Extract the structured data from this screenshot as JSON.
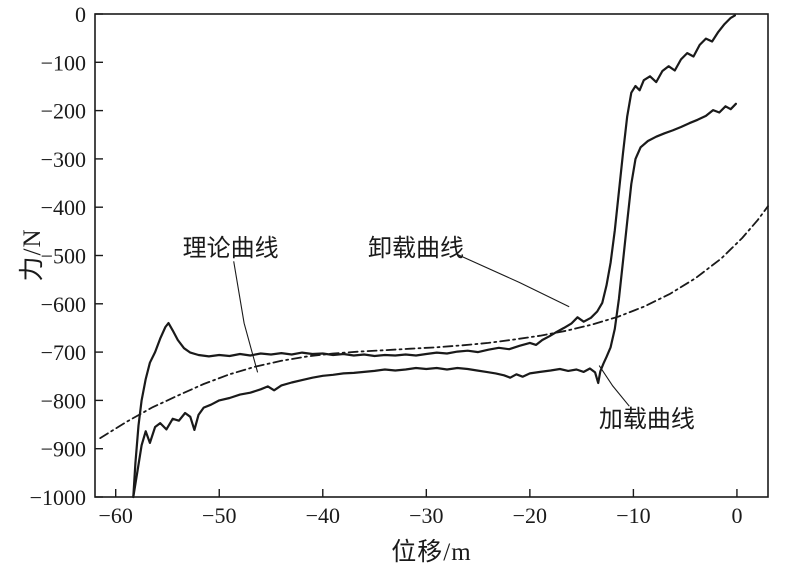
{
  "figure": {
    "background": "#ffffff",
    "ink": "#1a1a1a"
  },
  "chart_data": {
    "type": "line",
    "title": "",
    "xlabel": "位移/m",
    "ylabel": "力/N",
    "xlim": [
      -62,
      3
    ],
    "ylim": [
      -1000,
      0
    ],
    "xticks": [
      -60,
      -50,
      -40,
      -30,
      -20,
      -10,
      0
    ],
    "yticks": [
      0,
      -100,
      -200,
      -300,
      -400,
      -500,
      -600,
      -700,
      -800,
      -900,
      -1000
    ],
    "grid": false,
    "legend": "none",
    "series": [
      {
        "key": "theoretical-curve",
        "name": "理论曲线",
        "style": "dashdot",
        "points": [
          [
            -61.5,
            -878
          ],
          [
            -59,
            -845
          ],
          [
            -56.5,
            -815
          ],
          [
            -54,
            -790
          ],
          [
            -51.5,
            -766
          ],
          [
            -49,
            -746
          ],
          [
            -46.5,
            -730
          ],
          [
            -44,
            -718
          ],
          [
            -41.5,
            -709
          ],
          [
            -39,
            -703
          ],
          [
            -36.5,
            -699
          ],
          [
            -34,
            -696
          ],
          [
            -31.5,
            -693
          ],
          [
            -29,
            -690
          ],
          [
            -26.5,
            -686
          ],
          [
            -24,
            -681
          ],
          [
            -21.5,
            -674
          ],
          [
            -19,
            -666
          ],
          [
            -16.5,
            -656
          ],
          [
            -14,
            -643
          ],
          [
            -11.5,
            -627
          ],
          [
            -9,
            -606
          ],
          [
            -6.5,
            -580
          ],
          [
            -4,
            -547
          ],
          [
            -1.5,
            -506
          ],
          [
            0.5,
            -464
          ],
          [
            2,
            -427
          ],
          [
            3,
            -398
          ]
        ]
      },
      {
        "key": "unloading-curve",
        "name": "卸载曲线",
        "style": "solid",
        "points": [
          [
            -58.3,
            -1000
          ],
          [
            -58.1,
            -930
          ],
          [
            -57.8,
            -852
          ],
          [
            -57.5,
            -800
          ],
          [
            -57.1,
            -756
          ],
          [
            -56.7,
            -722
          ],
          [
            -56.2,
            -700
          ],
          [
            -55.7,
            -672
          ],
          [
            -55.2,
            -648
          ],
          [
            -54.9,
            -640
          ],
          [
            -54.5,
            -655
          ],
          [
            -54,
            -675
          ],
          [
            -53.4,
            -692
          ],
          [
            -52.8,
            -701
          ],
          [
            -52,
            -706
          ],
          [
            -51,
            -709
          ],
          [
            -50,
            -706
          ],
          [
            -49,
            -708
          ],
          [
            -48,
            -704
          ],
          [
            -47,
            -707
          ],
          [
            -46,
            -703
          ],
          [
            -45,
            -705
          ],
          [
            -44,
            -702
          ],
          [
            -43,
            -705
          ],
          [
            -42,
            -701
          ],
          [
            -41,
            -704
          ],
          [
            -40,
            -703
          ],
          [
            -39,
            -706
          ],
          [
            -38,
            -704
          ],
          [
            -37,
            -707
          ],
          [
            -36,
            -705
          ],
          [
            -35,
            -708
          ],
          [
            -34,
            -706
          ],
          [
            -33,
            -707
          ],
          [
            -32,
            -705
          ],
          [
            -31,
            -707
          ],
          [
            -30,
            -704
          ],
          [
            -29,
            -701
          ],
          [
            -28,
            -703
          ],
          [
            -27,
            -699
          ],
          [
            -26,
            -697
          ],
          [
            -25,
            -700
          ],
          [
            -24,
            -695
          ],
          [
            -23,
            -691
          ],
          [
            -22,
            -694
          ],
          [
            -21,
            -687
          ],
          [
            -20,
            -681
          ],
          [
            -19.4,
            -685
          ],
          [
            -18.8,
            -675
          ],
          [
            -18.1,
            -667
          ],
          [
            -17.4,
            -658
          ],
          [
            -16.7,
            -650
          ],
          [
            -16,
            -641
          ],
          [
            -15.4,
            -628
          ],
          [
            -14.8,
            -637
          ],
          [
            -14.1,
            -629
          ],
          [
            -13.5,
            -616
          ],
          [
            -13,
            -598
          ],
          [
            -12.6,
            -562
          ],
          [
            -12.2,
            -515
          ],
          [
            -11.8,
            -448
          ],
          [
            -11.4,
            -368
          ],
          [
            -11,
            -288
          ],
          [
            -10.6,
            -212
          ],
          [
            -10.2,
            -163
          ],
          [
            -9.8,
            -149
          ],
          [
            -9.4,
            -158
          ],
          [
            -9,
            -137
          ],
          [
            -8.4,
            -129
          ],
          [
            -7.8,
            -141
          ],
          [
            -7.2,
            -118
          ],
          [
            -6.6,
            -108
          ],
          [
            -6,
            -117
          ],
          [
            -5.4,
            -94
          ],
          [
            -4.8,
            -81
          ],
          [
            -4.2,
            -88
          ],
          [
            -3.6,
            -64
          ],
          [
            -3,
            -51
          ],
          [
            -2.4,
            -57
          ],
          [
            -1.8,
            -37
          ],
          [
            -1.2,
            -21
          ],
          [
            -0.6,
            -8
          ],
          [
            -0.2,
            -3
          ]
        ]
      },
      {
        "key": "loading-curve",
        "name": "加载曲线",
        "style": "solid",
        "points": [
          [
            -0.1,
            -186
          ],
          [
            -0.6,
            -197
          ],
          [
            -1.1,
            -191
          ],
          [
            -1.7,
            -204
          ],
          [
            -2.3,
            -199
          ],
          [
            -3,
            -211
          ],
          [
            -3.8,
            -219
          ],
          [
            -4.6,
            -226
          ],
          [
            -5.4,
            -234
          ],
          [
            -6.2,
            -241
          ],
          [
            -7,
            -247
          ],
          [
            -7.8,
            -254
          ],
          [
            -8.6,
            -263
          ],
          [
            -9.3,
            -276
          ],
          [
            -9.8,
            -300
          ],
          [
            -10.2,
            -352
          ],
          [
            -10.6,
            -430
          ],
          [
            -11,
            -512
          ],
          [
            -11.4,
            -590
          ],
          [
            -11.8,
            -652
          ],
          [
            -12.2,
            -690
          ],
          [
            -12.6,
            -710
          ],
          [
            -12.9,
            -724
          ],
          [
            -13.2,
            -740
          ],
          [
            -13.4,
            -764
          ],
          [
            -13.7,
            -742
          ],
          [
            -14.2,
            -734
          ],
          [
            -14.8,
            -741
          ],
          [
            -15.5,
            -736
          ],
          [
            -16.3,
            -739
          ],
          [
            -17.1,
            -735
          ],
          [
            -18,
            -738
          ],
          [
            -19,
            -741
          ],
          [
            -20,
            -744
          ],
          [
            -20.7,
            -751
          ],
          [
            -21.3,
            -746
          ],
          [
            -21.9,
            -753
          ],
          [
            -22.5,
            -748
          ],
          [
            -23.3,
            -744
          ],
          [
            -24.2,
            -741
          ],
          [
            -25.1,
            -738
          ],
          [
            -26,
            -735
          ],
          [
            -27,
            -733
          ],
          [
            -28,
            -736
          ],
          [
            -29,
            -733
          ],
          [
            -30,
            -735
          ],
          [
            -31,
            -733
          ],
          [
            -32,
            -736
          ],
          [
            -33,
            -738
          ],
          [
            -34,
            -736
          ],
          [
            -35,
            -739
          ],
          [
            -36,
            -741
          ],
          [
            -37,
            -743
          ],
          [
            -38,
            -744
          ],
          [
            -39,
            -747
          ],
          [
            -40,
            -749
          ],
          [
            -41,
            -753
          ],
          [
            -42,
            -758
          ],
          [
            -43,
            -763
          ],
          [
            -44,
            -769
          ],
          [
            -44.7,
            -779
          ],
          [
            -45.3,
            -771
          ],
          [
            -46,
            -777
          ],
          [
            -47,
            -784
          ],
          [
            -48,
            -788
          ],
          [
            -49,
            -795
          ],
          [
            -50,
            -800
          ],
          [
            -50.8,
            -809
          ],
          [
            -51.5,
            -815
          ],
          [
            -52,
            -830
          ],
          [
            -52.4,
            -861
          ],
          [
            -52.8,
            -834
          ],
          [
            -53.3,
            -826
          ],
          [
            -53.9,
            -842
          ],
          [
            -54.5,
            -838
          ],
          [
            -55.1,
            -860
          ],
          [
            -55.7,
            -847
          ],
          [
            -56.2,
            -855
          ],
          [
            -56.7,
            -888
          ],
          [
            -57.1,
            -864
          ],
          [
            -57.5,
            -893
          ],
          [
            -57.9,
            -946
          ],
          [
            -58.3,
            -1000
          ]
        ]
      }
    ],
    "annotations": [
      {
        "text": "理论曲线",
        "x": -48.9,
        "y": -484,
        "leader": [
          [
            -48.6,
            -512
          ],
          [
            -47.6,
            -640
          ],
          [
            -46.3,
            -742
          ]
        ]
      },
      {
        "text": "卸载曲线",
        "x": -31,
        "y": -484,
        "leader": [
          [
            -27,
            -498
          ],
          [
            -21,
            -556
          ],
          [
            -16.2,
            -606
          ]
        ]
      },
      {
        "text": "加载曲线",
        "x": -8.7,
        "y": -838,
        "leader": [
          [
            -10.4,
            -812
          ],
          [
            -12,
            -770
          ],
          [
            -13.3,
            -728
          ]
        ]
      }
    ]
  }
}
